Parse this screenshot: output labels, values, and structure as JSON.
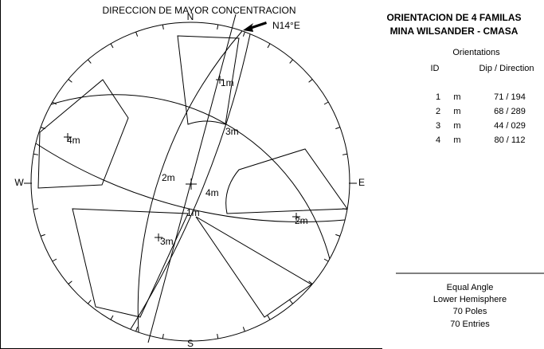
{
  "annotation": {
    "text": "DIRECCION DE MAYOR CONCENTRACION",
    "direction": "N14°E"
  },
  "compass": {
    "n": "N",
    "e": "E",
    "s": "S",
    "w": "W"
  },
  "net_labels": [
    "1m",
    "1m",
    "2m",
    "2m",
    "3m",
    "3m",
    "4m",
    "4m"
  ],
  "panel": {
    "title": [
      "ORIENTACION DE 4 FAMILAS",
      "MINA WILSANDER - CMASA"
    ],
    "subtitle": "Orientations",
    "columns": [
      "ID",
      "Dip / Direction"
    ],
    "rows": [
      [
        "1",
        "m",
        "71 / 194"
      ],
      [
        "2",
        "m",
        "68 / 289"
      ],
      [
        "3",
        "m",
        "44 / 029"
      ],
      [
        "4",
        "m",
        "80 / 112"
      ]
    ],
    "footer": [
      "Equal Angle",
      "Lower Hemisphere",
      "70 Poles",
      "70 Entries"
    ]
  }
}
